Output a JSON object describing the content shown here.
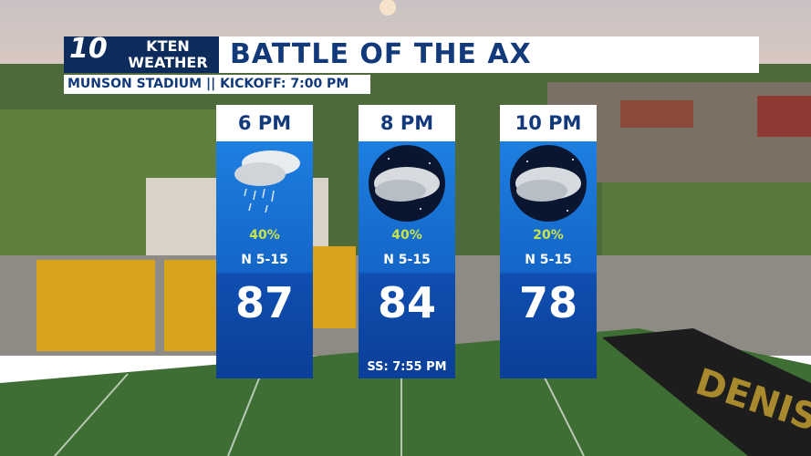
{
  "header": {
    "logo_number": "10",
    "logo_text": "KTEN\nWEATHER",
    "title": "BATTLE OF THE AX",
    "subtitle": "MUNSON STADIUM || KICKOFF: 7:00 PM"
  },
  "cards": [
    {
      "time": "6 PM",
      "precip": "40%",
      "wind": "N 5-15",
      "temp": "87"
    },
    {
      "time": "8 PM",
      "precip": "40%",
      "wind": "N 5-15",
      "temp": "84",
      "note": "SS: 7:55 PM"
    },
    {
      "time": "10 PM",
      "precip": "20%",
      "wind": "N 5-15",
      "temp": "78"
    }
  ]
}
